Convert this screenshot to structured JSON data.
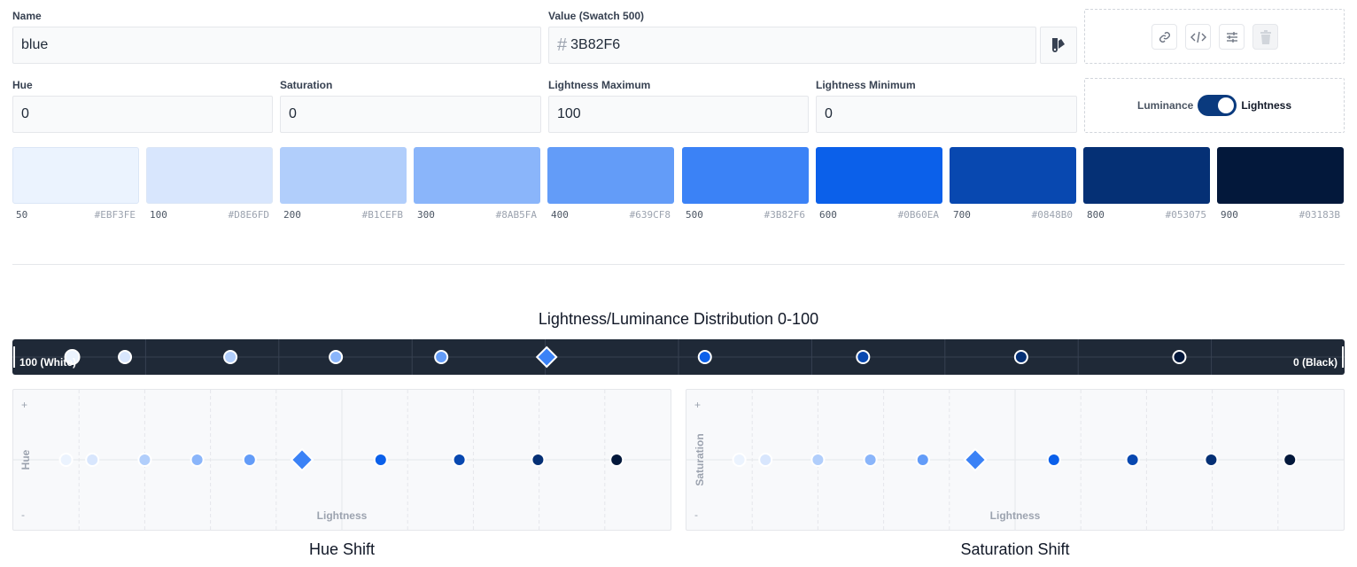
{
  "form": {
    "name_label": "Name",
    "name_value": "blue",
    "value_label": "Value (Swatch 500)",
    "value_hash": "#",
    "value_value": "3B82F6",
    "hue_label": "Hue",
    "hue_value": "0",
    "saturation_label": "Saturation",
    "saturation_value": "0",
    "lmax_label": "Lightness Maximum",
    "lmax_value": "100",
    "lmin_label": "Lightness Minimum",
    "lmin_value": "0"
  },
  "toggle": {
    "left_label": "Luminance",
    "right_label": "Lightness",
    "selected": "Lightness"
  },
  "swatches": [
    {
      "name": "50",
      "hex": "#EBF3FE"
    },
    {
      "name": "100",
      "hex": "#D8E6FD"
    },
    {
      "name": "200",
      "hex": "#B1CEFB"
    },
    {
      "name": "300",
      "hex": "#8AB5FA"
    },
    {
      "name": "400",
      "hex": "#639CF8"
    },
    {
      "name": "500",
      "hex": "#3B82F6"
    },
    {
      "name": "600",
      "hex": "#0B60EA"
    },
    {
      "name": "700",
      "hex": "#0848B0"
    },
    {
      "name": "800",
      "hex": "#053075"
    },
    {
      "name": "900",
      "hex": "#03183B"
    }
  ],
  "distribution": {
    "title": "Lightness/Luminance Distribution 0-100",
    "left_label": "100 (White)",
    "right_label": "0 (Black)",
    "values": [
      96,
      92,
      84,
      76,
      68,
      60,
      48,
      36,
      24,
      12
    ]
  },
  "hue_graph": {
    "title": "Hue Shift",
    "x_label": "Lightness",
    "y_label": "Hue",
    "plus": "+",
    "minus": "-"
  },
  "sat_graph": {
    "title": "Saturation Shift",
    "x_label": "Lightness",
    "y_label": "Saturation",
    "plus": "+",
    "minus": "-"
  },
  "icons": [
    "link-icon",
    "code-icon",
    "sliders-icon",
    "trash-icon",
    "palette-icon"
  ],
  "colors": {
    "accent": "#3B82F6",
    "bar_bg": "#1f2937",
    "toggle": "#0a3a7e"
  }
}
